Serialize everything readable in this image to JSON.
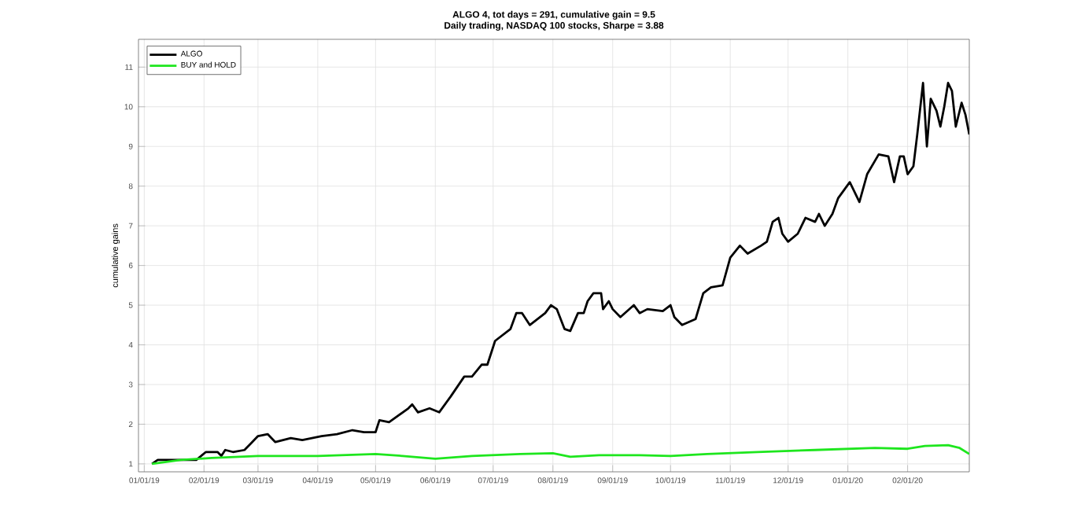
{
  "chart_data": {
    "type": "line",
    "title": "ALGO 4, tot days = 291, cumulative gain = 9.5",
    "subtitle": "Daily trading, NASDAQ 100 stocks, Sharpe = 3.88",
    "ylabel": "cumulative gains",
    "xlim": [
      "2018-12-29",
      "2020-03-04"
    ],
    "xticks": [
      {
        "value": "2019-01-01",
        "label": "01/01/19"
      },
      {
        "value": "2019-02-01",
        "label": "02/01/19"
      },
      {
        "value": "2019-03-01",
        "label": "03/01/19"
      },
      {
        "value": "2019-04-01",
        "label": "04/01/19"
      },
      {
        "value": "2019-05-01",
        "label": "05/01/19"
      },
      {
        "value": "2019-06-01",
        "label": "06/01/19"
      },
      {
        "value": "2019-07-01",
        "label": "07/01/19"
      },
      {
        "value": "2019-08-01",
        "label": "08/01/19"
      },
      {
        "value": "2019-09-01",
        "label": "09/01/19"
      },
      {
        "value": "2019-10-01",
        "label": "10/01/19"
      },
      {
        "value": "2019-11-01",
        "label": "11/01/19"
      },
      {
        "value": "2019-12-01",
        "label": "12/01/19"
      },
      {
        "value": "2020-01-01",
        "label": "01/01/20"
      },
      {
        "value": "2020-02-01",
        "label": "02/01/20"
      }
    ],
    "ylim": [
      0.8,
      11.7
    ],
    "yticks": [
      1,
      2,
      3,
      4,
      5,
      6,
      7,
      8,
      9,
      10,
      11
    ],
    "grid": true,
    "legend": "top left",
    "marker": "none",
    "line_style": "solid",
    "series": [
      {
        "name": "ALGO",
        "color": "#000000",
        "x": [
          "2019-01-05",
          "2019-01-08",
          "2019-01-20",
          "2019-01-28",
          "2019-02-02",
          "2019-02-08",
          "2019-02-10",
          "2019-02-12",
          "2019-02-16",
          "2019-02-22",
          "2019-02-25",
          "2019-03-01",
          "2019-03-06",
          "2019-03-10",
          "2019-03-18",
          "2019-03-24",
          "2019-04-03",
          "2019-04-11",
          "2019-04-19",
          "2019-04-25",
          "2019-05-01",
          "2019-05-03",
          "2019-05-08",
          "2019-05-18",
          "2019-05-20",
          "2019-05-23",
          "2019-05-29",
          "2019-06-03",
          "2019-06-09",
          "2019-06-16",
          "2019-06-20",
          "2019-06-25",
          "2019-06-28",
          "2019-07-02",
          "2019-07-10",
          "2019-07-13",
          "2019-07-16",
          "2019-07-20",
          "2019-07-28",
          "2019-07-31",
          "2019-08-03",
          "2019-08-07",
          "2019-08-10",
          "2019-08-14",
          "2019-08-17",
          "2019-08-19",
          "2019-08-22",
          "2019-08-26",
          "2019-08-27",
          "2019-08-30",
          "2019-09-01",
          "2019-09-05",
          "2019-09-12",
          "2019-09-15",
          "2019-09-19",
          "2019-09-27",
          "2019-10-01",
          "2019-10-03",
          "2019-10-07",
          "2019-10-14",
          "2019-10-18",
          "2019-10-22",
          "2019-10-28",
          "2019-11-01",
          "2019-11-06",
          "2019-11-10",
          "2019-11-17",
          "2019-11-20",
          "2019-11-23",
          "2019-11-26",
          "2019-11-28",
          "2019-12-01",
          "2019-12-06",
          "2019-12-10",
          "2019-12-15",
          "2019-12-17",
          "2019-12-20",
          "2019-12-24",
          "2019-12-27",
          "2020-01-02",
          "2020-01-07",
          "2020-01-11",
          "2020-01-17",
          "2020-01-22",
          "2020-01-25",
          "2020-01-28",
          "2020-01-30",
          "2020-02-01",
          "2020-02-04",
          "2020-02-06",
          "2020-02-09",
          "2020-02-11",
          "2020-02-13",
          "2020-02-16",
          "2020-02-18",
          "2020-02-20",
          "2020-02-22",
          "2020-02-24",
          "2020-02-26",
          "2020-02-29",
          "2020-03-02",
          "2020-03-04"
        ],
        "values": [
          1.0,
          1.1,
          1.1,
          1.1,
          1.3,
          1.3,
          1.2,
          1.35,
          1.3,
          1.35,
          1.5,
          1.7,
          1.75,
          1.55,
          1.65,
          1.6,
          1.7,
          1.75,
          1.85,
          1.8,
          1.8,
          2.1,
          2.05,
          2.4,
          2.5,
          2.3,
          2.4,
          2.3,
          2.7,
          3.2,
          3.2,
          3.5,
          3.5,
          4.1,
          4.4,
          4.8,
          4.8,
          4.5,
          4.8,
          5.0,
          4.9,
          4.4,
          4.35,
          4.8,
          4.8,
          5.1,
          5.3,
          5.3,
          4.9,
          5.1,
          4.9,
          4.7,
          5.0,
          4.8,
          4.9,
          4.85,
          5.0,
          4.7,
          4.5,
          4.65,
          5.3,
          5.45,
          5.5,
          6.2,
          6.5,
          6.3,
          6.5,
          6.6,
          7.1,
          7.2,
          6.8,
          6.6,
          6.8,
          7.2,
          7.1,
          7.3,
          7.0,
          7.3,
          7.7,
          8.1,
          7.6,
          8.3,
          8.8,
          8.75,
          8.1,
          8.75,
          8.75,
          8.3,
          8.5,
          9.3,
          10.6,
          9.0,
          10.2,
          9.9,
          9.5,
          10.0,
          10.6,
          10.4,
          9.5,
          10.1,
          9.8,
          9.3
        ]
      },
      {
        "name": "BUY and HOLD",
        "color": "#1ee61e",
        "x": [
          "2019-01-05",
          "2019-01-20",
          "2019-02-05",
          "2019-03-01",
          "2019-04-01",
          "2019-05-01",
          "2019-05-15",
          "2019-06-01",
          "2019-06-20",
          "2019-07-15",
          "2019-08-01",
          "2019-08-10",
          "2019-08-25",
          "2019-09-15",
          "2019-10-01",
          "2019-10-20",
          "2019-11-15",
          "2019-12-15",
          "2020-01-15",
          "2020-02-01",
          "2020-02-10",
          "2020-02-22",
          "2020-02-28",
          "2020-03-04"
        ],
        "values": [
          1.0,
          1.1,
          1.15,
          1.2,
          1.2,
          1.25,
          1.2,
          1.13,
          1.2,
          1.25,
          1.27,
          1.18,
          1.22,
          1.22,
          1.2,
          1.25,
          1.3,
          1.35,
          1.4,
          1.38,
          1.45,
          1.47,
          1.4,
          1.25
        ]
      }
    ]
  }
}
